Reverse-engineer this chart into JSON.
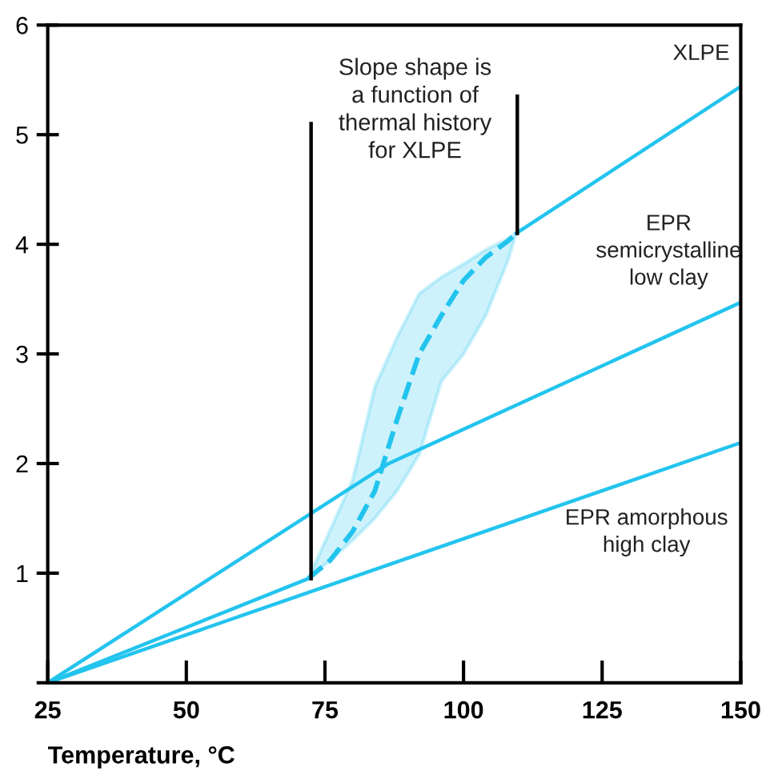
{
  "chart_data": {
    "type": "line",
    "xlabel": "Temperature, °C",
    "xlim": [
      25,
      150
    ],
    "xticks": [
      25,
      50,
      75,
      100,
      125,
      150
    ],
    "ylim": [
      0,
      6
    ],
    "yticks": [
      {
        "value": 0,
        "label": null
      },
      1,
      2,
      3,
      4,
      5,
      6
    ],
    "grid": false,
    "legend": false,
    "marker": "none",
    "annotations": [
      "Slope shape is\na function of\nthermal history\nfor XLPE"
    ],
    "series": [
      {
        "name": "XLPE",
        "color": "#22c4ee",
        "x": [
          109.5,
          150
        ],
        "values": [
          4.1,
          5.44
        ]
      },
      {
        "name": "EPR\nsemicrystalline\nlow clay",
        "color": "#22c4ee",
        "x": [
          25,
          86.5,
          150
        ],
        "values": [
          0,
          2.0,
          3.47
        ]
      },
      {
        "name": "EPR amorphous\nhigh clay",
        "color": "#22c4ee",
        "x": [
          25,
          150
        ],
        "values": [
          0,
          2.19
        ]
      },
      {
        "color": "#22c4ee",
        "x": [
          25,
          72
        ],
        "values": [
          0,
          0.95
        ]
      },
      {
        "color": "#22c4ee",
        "line_style": "dashed",
        "x": [
          72,
          76,
          80,
          84,
          88,
          92,
          96,
          100,
          104,
          108,
          109.5
        ],
        "values": [
          0.95,
          1.12,
          1.38,
          1.75,
          2.4,
          3.0,
          3.35,
          3.67,
          3.88,
          4.03,
          4.1
        ],
        "lower": [
          0.95,
          1.12,
          1.3,
          1.5,
          1.75,
          2.08,
          2.75,
          3.0,
          3.35,
          3.85,
          4.1
        ],
        "upper": [
          0.95,
          1.4,
          1.85,
          2.7,
          3.15,
          3.55,
          3.7,
          3.82,
          3.95,
          4.05,
          4.1
        ]
      },
      {
        "color": "#000000",
        "x": [
          72.5,
          72.5
        ],
        "values": [
          0.95,
          5.1
        ]
      },
      {
        "color": "#000000",
        "x": [
          109.7,
          109.7
        ],
        "values": [
          4.1,
          5.35
        ]
      }
    ]
  }
}
